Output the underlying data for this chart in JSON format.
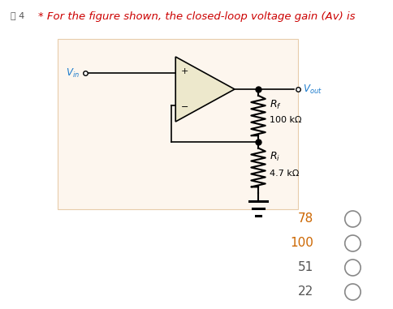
{
  "title": "* For the figure shown, the closed-loop voltage gain (Av) is",
  "title_color": "#cc0000",
  "title_fontsize": 9.5,
  "question_label": "摊 4",
  "bg_color": "#ffffff",
  "panel_bg": "#fdf6ee",
  "panel_border": "#e8ccaa",
  "rf_value": "100 kΩ",
  "ri_value": "4.7 kΩ",
  "choices": [
    "78",
    "100",
    "51",
    "22"
  ],
  "choice_color_78": "#cc6600",
  "choice_color_100": "#cc6600",
  "choice_color_51": "#555555",
  "choice_color_22": "#555555",
  "circle_color": "#888888",
  "opamp_face": "#ede8cc",
  "vin_color": "#1a7acc",
  "vout_color": "#1a7acc"
}
